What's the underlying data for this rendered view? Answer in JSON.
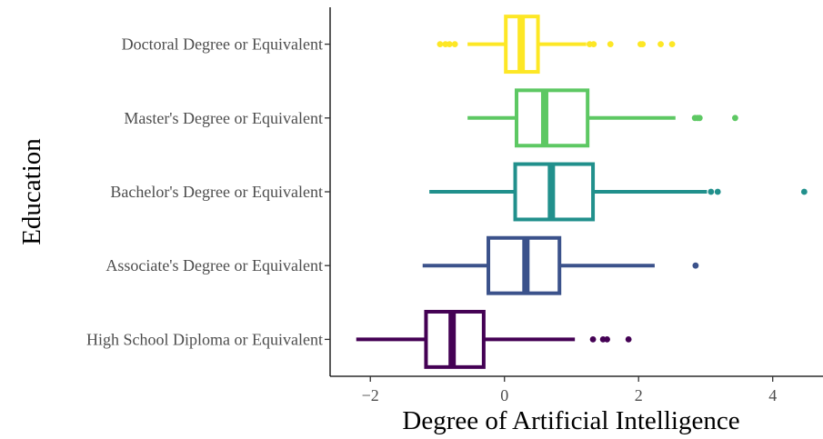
{
  "chart_data": {
    "type": "boxplot",
    "title": "",
    "xlabel": "Degree of Artificial Intelligence",
    "ylabel": "Education",
    "xlim": [
      -2.6,
      4.75
    ],
    "xticks": [
      -2,
      0,
      2,
      4
    ],
    "xtick_labels": [
      "−2",
      "0",
      "2",
      "4"
    ],
    "grid": false,
    "legend": "none",
    "categories": [
      "High School Diploma or Equivalent",
      "Associate's Degree or Equivalent",
      "Bachelor's Degree or Equivalent",
      "Master's Degree or Equivalent",
      "Doctoral Degree or Equivalent"
    ],
    "boxes": [
      {
        "category": "High School Diploma or Equivalent",
        "color": "#440154",
        "whisker_low": -2.21,
        "q1": -1.17,
        "median": -0.78,
        "q3": -0.31,
        "whisker_high": 1.05,
        "outliers": [
          1.32,
          1.47,
          1.53,
          1.85
        ]
      },
      {
        "category": "Associate's Degree or Equivalent",
        "color": "#3B528B",
        "whisker_low": -1.22,
        "q1": -0.24,
        "median": 0.32,
        "q3": 0.82,
        "whisker_high": 2.24,
        "outliers": [
          2.85
        ]
      },
      {
        "category": "Bachelor's Degree or Equivalent",
        "color": "#21908C",
        "whisker_low": -1.12,
        "q1": 0.16,
        "median": 0.7,
        "q3": 1.32,
        "whisker_high": 3.02,
        "outliers": [
          3.08,
          3.18,
          4.47
        ]
      },
      {
        "category": "Master's Degree or Equivalent",
        "color": "#5DC863",
        "whisker_low": -0.55,
        "q1": 0.18,
        "median": 0.6,
        "q3": 1.24,
        "whisker_high": 2.55,
        "outliers": [
          2.84,
          2.88,
          2.91,
          3.44
        ]
      },
      {
        "category": "Doctoral Degree or Equivalent",
        "color": "#FDE725",
        "whisker_low": -0.55,
        "q1": 0.02,
        "median": 0.25,
        "q3": 0.5,
        "whisker_high": 1.22,
        "outliers": [
          -0.96,
          -0.88,
          -0.82,
          -0.74,
          1.27,
          1.33,
          1.58,
          2.03,
          2.06,
          2.33,
          2.5
        ]
      }
    ]
  }
}
